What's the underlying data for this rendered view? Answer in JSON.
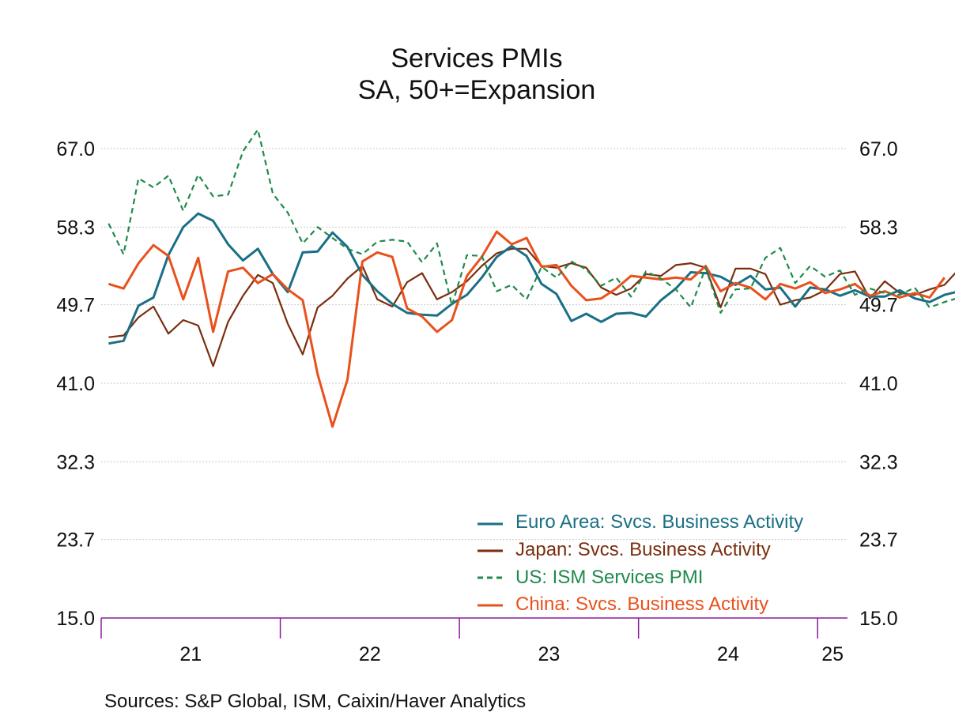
{
  "chart_data": {
    "type": "line",
    "title": "Services PMIs",
    "subtitle": "SA, 50+=Expansion",
    "ylim": [
      15.0,
      67.0
    ],
    "yticks": [
      "67.0",
      "58.3",
      "49.7",
      "41.0",
      "32.3",
      "23.7",
      "15.0"
    ],
    "ytick_values": [
      67.0,
      58.3,
      49.7,
      41.0,
      32.3,
      23.7,
      15.0
    ],
    "x_start": "2021-01",
    "x_end": "2025-02",
    "x_year_labels": [
      "21",
      "22",
      "23",
      "24",
      "25"
    ],
    "grid": true,
    "legend_position": "bottom-right",
    "series": [
      {
        "name": "Euro Area: Svcs. Business Activity",
        "color": "#1a6f86",
        "dash": "solid",
        "values": [
          45.4,
          45.7,
          49.6,
          50.5,
          55.2,
          58.3,
          59.8,
          59.0,
          56.4,
          54.6,
          55.9,
          53.1,
          51.1,
          55.5,
          55.6,
          57.7,
          56.1,
          53.0,
          51.2,
          49.8,
          48.8,
          48.6,
          48.5,
          49.8,
          50.8,
          52.7,
          55.0,
          56.2,
          55.1,
          52.0,
          50.9,
          47.9,
          48.7,
          47.8,
          48.7,
          48.8,
          48.4,
          50.2,
          51.5,
          53.3,
          53.2,
          52.8,
          51.9,
          52.9,
          51.4,
          51.6,
          49.5,
          51.6,
          51.4,
          50.7,
          51.3,
          50.6,
          50.6,
          51.3,
          50.4,
          50.0,
          50.8,
          51.2
        ]
      },
      {
        "name": "Japan: Svcs. Business Activity",
        "color": "#7a2e0e",
        "dash": "solid",
        "values": [
          46.1,
          46.3,
          48.3,
          49.5,
          46.5,
          48.0,
          47.4,
          42.9,
          47.8,
          50.7,
          53.0,
          52.1,
          47.6,
          44.2,
          49.4,
          50.7,
          52.6,
          54.0,
          50.3,
          49.5,
          52.2,
          53.2,
          50.3,
          51.1,
          52.3,
          54.0,
          55.4,
          55.9,
          55.9,
          54.0,
          53.8,
          54.3,
          53.8,
          51.6,
          50.8,
          51.5,
          53.1,
          52.9,
          54.1,
          54.3,
          53.8,
          49.4,
          53.7,
          53.7,
          53.1,
          49.7,
          50.2,
          50.5,
          51.3,
          53.1,
          53.4,
          50.4,
          52.3,
          51.0,
          50.8,
          51.4,
          51.9,
          53.7
        ]
      },
      {
        "name": "US: ISM Services PMI",
        "color": "#1f8a4c",
        "dash": "dashed",
        "values": [
          58.7,
          55.3,
          63.7,
          62.7,
          64.0,
          60.1,
          64.1,
          61.7,
          61.9,
          66.7,
          69.1,
          62.0,
          59.9,
          56.5,
          58.3,
          57.1,
          55.9,
          55.3,
          56.7,
          56.9,
          56.7,
          54.4,
          56.5,
          49.6,
          55.2,
          55.1,
          51.2,
          51.9,
          50.3,
          53.9,
          52.7,
          54.5,
          53.6,
          51.8,
          52.7,
          50.6,
          53.4,
          52.6,
          51.4,
          49.4,
          53.8,
          48.8,
          51.4,
          51.5,
          54.9,
          56.0,
          52.1,
          54.0,
          52.8,
          53.5,
          50.8,
          51.5,
          51.0,
          50.8,
          51.6,
          49.4,
          50.0,
          50.5
        ]
      },
      {
        "name": "China: Svcs. Business Activity",
        "color": "#e8511c",
        "dash": "solid",
        "values": [
          52.0,
          51.5,
          54.3,
          56.3,
          55.1,
          50.3,
          54.9,
          46.7,
          53.4,
          53.8,
          52.1,
          53.1,
          51.4,
          50.2,
          42.0,
          36.2,
          41.4,
          54.5,
          55.5,
          55.0,
          49.3,
          48.4,
          46.7,
          48.0,
          52.9,
          55.0,
          57.8,
          56.4,
          57.1,
          53.9,
          54.1,
          51.8,
          50.2,
          50.4,
          51.5,
          52.9,
          52.7,
          52.5,
          52.7,
          52.5,
          54.0,
          51.2,
          52.1,
          51.6,
          50.3,
          52.0,
          51.5,
          52.2,
          51.0,
          51.4,
          52.0,
          50.7,
          51.2,
          50.5,
          51.0,
          50.5,
          52.7
        ]
      }
    ]
  },
  "source_note": "Sources:   S&P Global, ISM, Caixin/Haver Analytics"
}
